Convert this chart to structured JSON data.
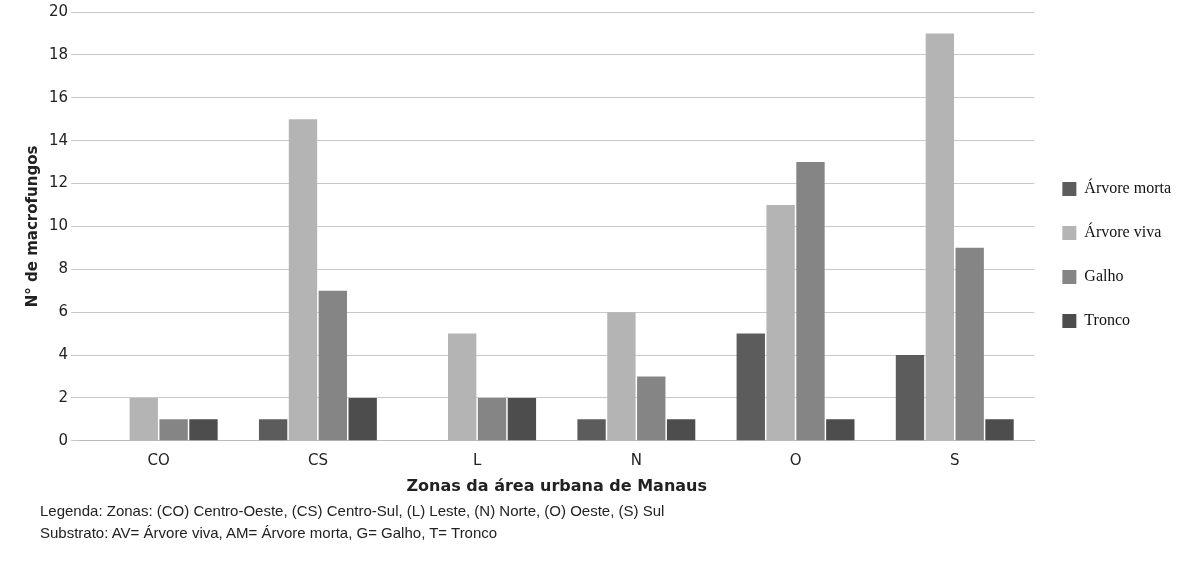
{
  "chart_data": {
    "type": "bar",
    "xlabel": "Zonas da área urbana de Manaus",
    "ylabel": "N° de macrofungos",
    "categories": [
      "CO",
      "CS",
      "L",
      "N",
      "O",
      "S"
    ],
    "series": [
      {
        "name": "Árvore morta",
        "color": "#5c5c5c",
        "values": [
          0,
          1,
          0,
          1,
          5,
          4
        ]
      },
      {
        "name": "Árvore viva",
        "color": "#b4b4b4",
        "values": [
          2,
          15,
          5,
          6,
          11,
          19
        ]
      },
      {
        "name": "Galho",
        "color": "#858585",
        "values": [
          1,
          7,
          2,
          3,
          13,
          9
        ]
      },
      {
        "name": "Tronco",
        "color": "#4d4d4d",
        "values": [
          1,
          2,
          2,
          1,
          1,
          1
        ]
      }
    ],
    "ylim": [
      0,
      20
    ],
    "yticks": [
      0,
      2,
      4,
      6,
      8,
      10,
      12,
      14,
      16,
      18,
      20
    ],
    "grid": "y",
    "legend": "right",
    "annotations": [
      "Legenda: Zonas: (CO) Centro-Oeste, (CS) Centro-Sul, (L) Leste, (N) Norte, (O) Oeste, (S) Sul",
      "Substrato: AV= Árvore viva, AM= Árvore morta, G= Galho, T= Tronco"
    ]
  }
}
